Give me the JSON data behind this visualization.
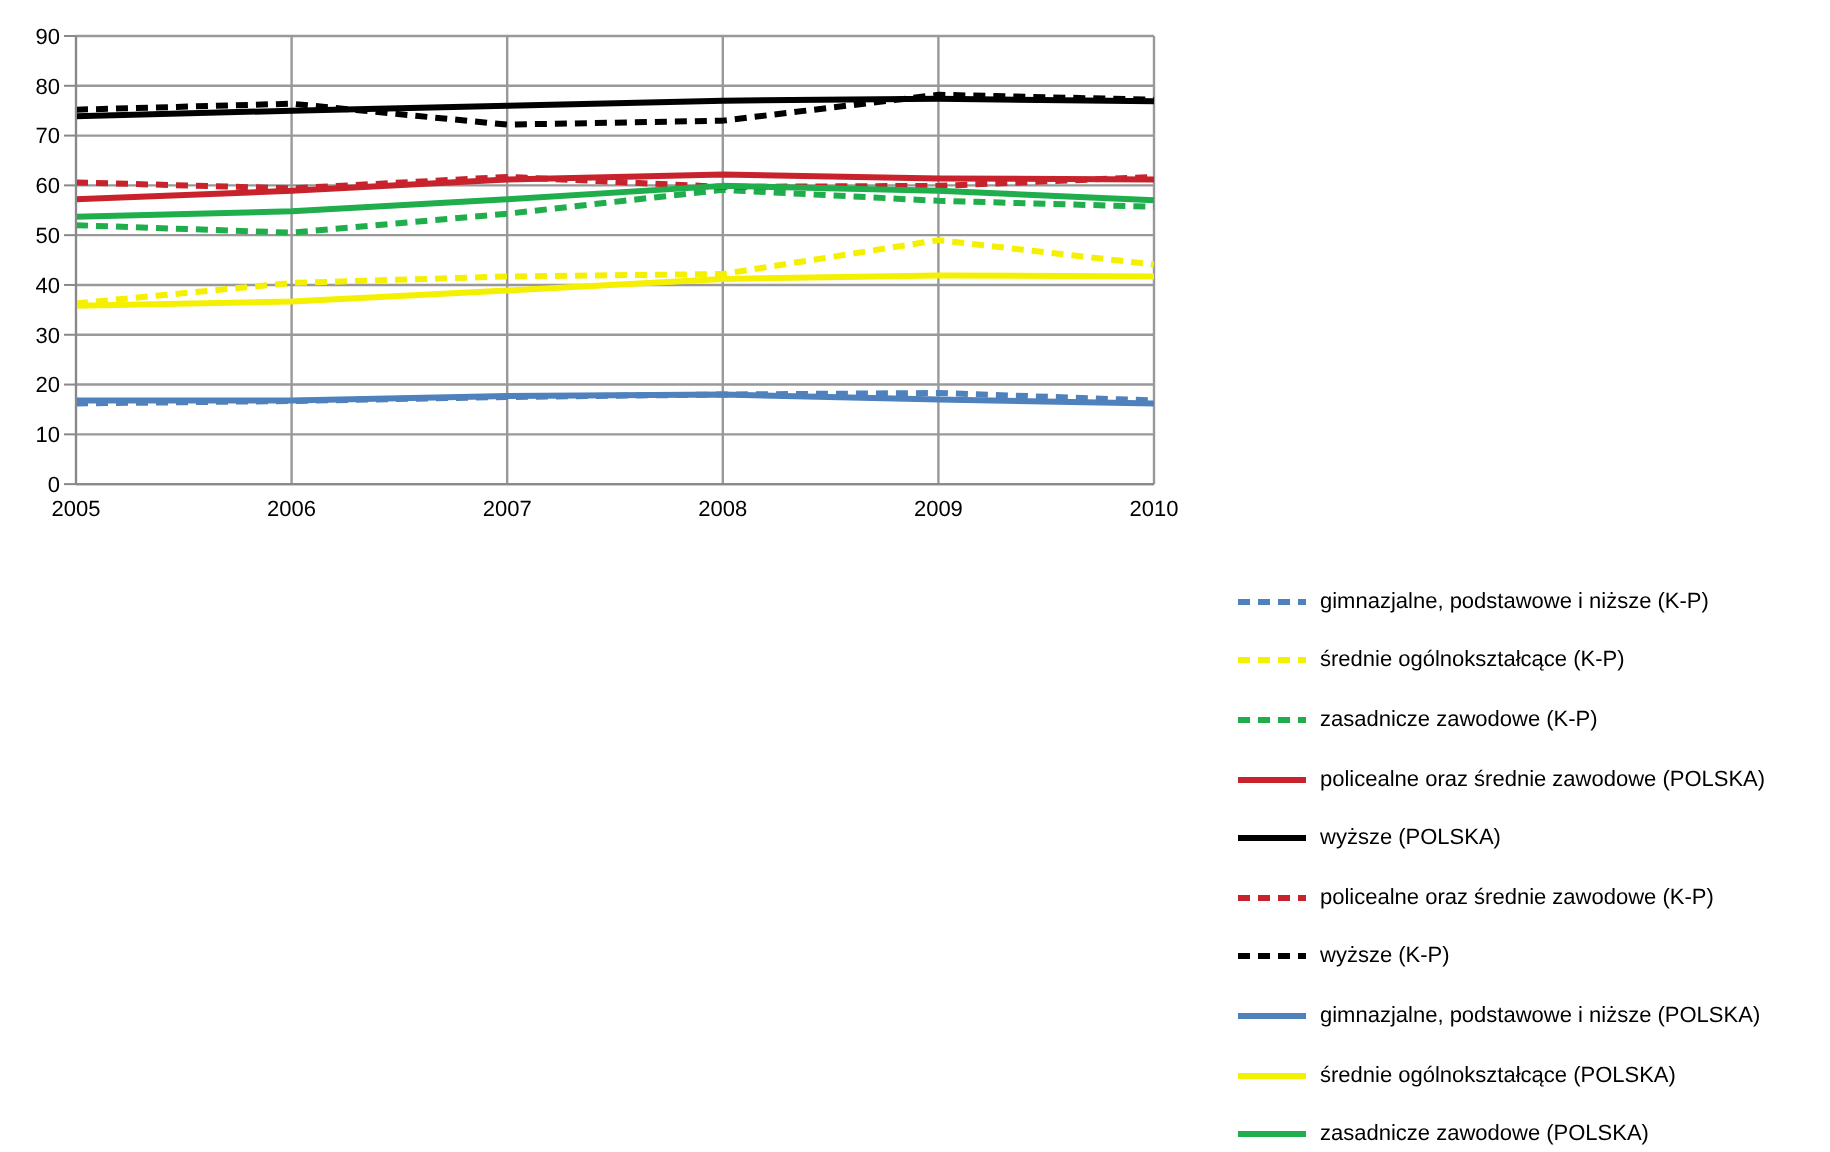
{
  "chart_data": {
    "type": "line",
    "categories": [
      "2005",
      "2006",
      "2007",
      "2008",
      "2009",
      "2010"
    ],
    "series": [
      {
        "name": "gimnazjalne, podstawowe i niższe (K-P)",
        "color": "#4f81bd",
        "line_style": "dashed",
        "values": [
          16.2,
          16.7,
          17.5,
          18.0,
          18.3,
          16.8
        ]
      },
      {
        "name": "średnie ogólnokształcące (K-P)",
        "color": "#f5f000",
        "line_style": "dashed",
        "values": [
          36.3,
          40.4,
          41.7,
          42.2,
          49.0,
          44.1
        ]
      },
      {
        "name": "zasadnicze zawodowe (K-P)",
        "color": "#1fae4b",
        "line_style": "dashed",
        "values": [
          52.0,
          50.5,
          54.3,
          59.1,
          56.9,
          55.7
        ]
      },
      {
        "name": "policealne oraz średnie zawodowe (POLSKA)",
        "color": "#c8232c",
        "line_style": "solid",
        "values": [
          57.2,
          58.9,
          61.2,
          62.2,
          61.4,
          61.2
        ]
      },
      {
        "name": "wyższe (POLSKA)",
        "color": "#000000",
        "line_style": "solid",
        "values": [
          73.9,
          75.0,
          76.0,
          77.0,
          77.4,
          76.9
        ]
      },
      {
        "name": "policealne oraz średnie zawodowe (K-P)",
        "color": "#c8232c",
        "line_style": "dashed",
        "values": [
          60.6,
          59.4,
          61.7,
          59.7,
          59.9,
          61.7
        ]
      },
      {
        "name": "wyższe (K-P)",
        "color": "#000000",
        "line_style": "dashed",
        "values": [
          75.2,
          76.4,
          72.2,
          73.0,
          78.2,
          77.2
        ]
      },
      {
        "name": "gimnazjalne, podstawowe i niższe (POLSKA)",
        "color": "#4f81bd",
        "line_style": "solid",
        "values": [
          16.8,
          16.8,
          17.7,
          18.0,
          17.0,
          16.2
        ]
      },
      {
        "name": "średnie ogólnokształcące (POLSKA)",
        "color": "#f5f000",
        "line_style": "solid",
        "values": [
          35.8,
          36.7,
          38.9,
          41.2,
          41.9,
          41.7
        ]
      },
      {
        "name": "zasadnicze zawodowe (POLSKA)",
        "color": "#1fae4b",
        "line_style": "solid",
        "values": [
          53.7,
          54.8,
          57.2,
          59.9,
          58.9,
          57.0
        ]
      }
    ],
    "ylim": [
      0,
      90
    ],
    "yticks": [
      0,
      10,
      20,
      30,
      40,
      50,
      60,
      70,
      80,
      90
    ],
    "grid": true,
    "legend": "right",
    "marker": "none"
  }
}
